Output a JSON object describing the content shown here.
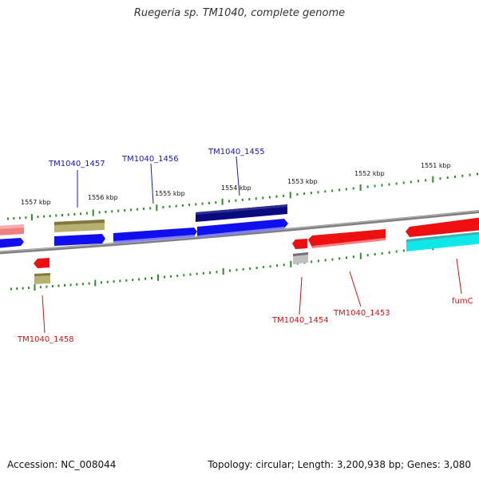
{
  "title": "Ruegeria sp. TM1040, complete genome",
  "footer": {
    "accession": "Accession: NC_008044",
    "topology": "Topology: circular; Length: 3,200,938 bp; Genes: 3,080"
  },
  "scale_labels": [
    "1557 kbp",
    "1556 kbp",
    "1555 kbp",
    "1554 kbp",
    "1553 kbp",
    "1552 kbp",
    "1551 kbp"
  ],
  "gene_labels": {
    "tm1040_1457": "TM1040_1457",
    "tm1040_1456": "TM1040_1456",
    "tm1040_1455": "TM1040_1455",
    "tm1040_1458": "TM1040_1458",
    "tm1040_1454": "TM1040_1454",
    "tm1040_1453": "TM1040_1453",
    "fumc": "fumC"
  },
  "colors": {
    "backbone": "#808080",
    "tick": "#2e8b2e",
    "blue": "#1010ee",
    "navy": "#0a0a80",
    "olive": "#b8b070",
    "red": "#ee1010",
    "pink": "#f08080",
    "grey": "#c0c0c0",
    "cyan": "#10e8e8",
    "label_blue": "#1a1aaa",
    "label_red": "#cc1111"
  }
}
